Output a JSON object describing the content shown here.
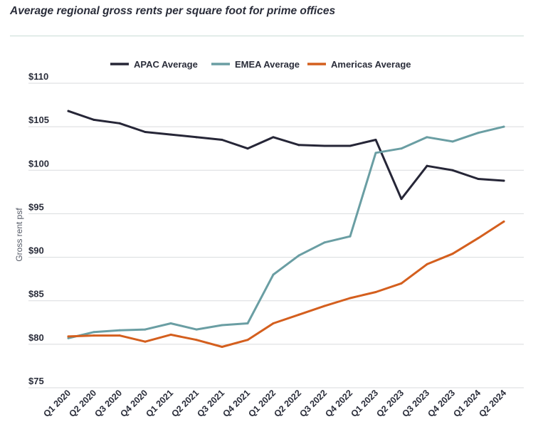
{
  "chart_data": {
    "type": "line",
    "title": "Average regional gross rents per square foot for prime offices",
    "ylabel": "Gross rent psf",
    "xlabel": "",
    "ylim": [
      75,
      110
    ],
    "y_ticks": [
      110,
      105,
      100,
      95,
      90,
      85,
      80,
      75
    ],
    "y_tick_labels": [
      "$110",
      "$105",
      "$100",
      "$95",
      "$90",
      "$85",
      "$80",
      "$75"
    ],
    "grid": "horizontal",
    "legend_position": "top",
    "categories": [
      "Q1 2020",
      "Q2 2020",
      "Q3 2020",
      "Q4 2020",
      "Q1 2021",
      "Q2 2021",
      "Q3 2021",
      "Q4 2021",
      "Q1 2022",
      "Q2 2022",
      "Q3 2022",
      "Q4 2022",
      "Q1 2023",
      "Q2 2023",
      "Q3 2023",
      "Q4 2023",
      "Q1 2024",
      "Q2 2024"
    ],
    "series": [
      {
        "name": "APAC Average",
        "color": "#262637",
        "values": [
          106.8,
          105.8,
          105.4,
          104.4,
          104.1,
          103.8,
          103.5,
          102.5,
          103.8,
          102.9,
          102.8,
          102.8,
          103.5,
          96.7,
          100.5,
          100.0,
          99.0,
          98.8
        ]
      },
      {
        "name": "EMEA Average",
        "color": "#6a9ea3",
        "values": [
          80.7,
          81.4,
          81.6,
          81.7,
          82.4,
          81.7,
          82.2,
          82.4,
          88.0,
          90.2,
          91.7,
          92.4,
          102.0,
          102.5,
          103.8,
          103.3,
          104.3,
          105.0
        ]
      },
      {
        "name": "Americas Average",
        "color": "#d45f1e",
        "values": [
          80.9,
          81.0,
          81.0,
          80.3,
          81.1,
          80.5,
          79.7,
          80.5,
          82.4,
          83.4,
          84.4,
          85.3,
          86.0,
          87.0,
          89.2,
          90.4,
          92.2,
          94.1
        ]
      }
    ]
  }
}
